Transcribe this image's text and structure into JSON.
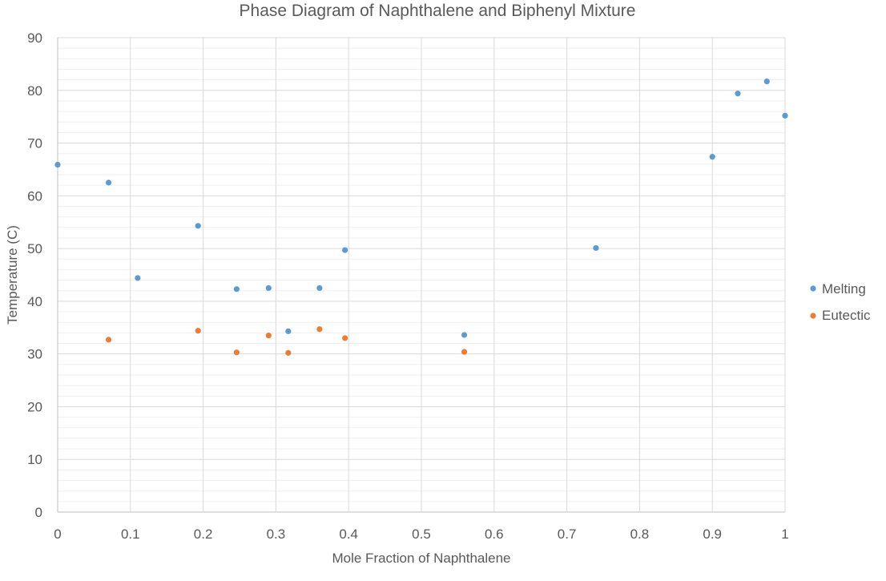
{
  "chart_data": {
    "type": "scatter",
    "title": "Phase Diagram of Naphthalene and Biphenyl Mixture",
    "xlabel": "Mole Fraction of Naphthalene",
    "ylabel": "Temperature (C)",
    "xlim": [
      0,
      1
    ],
    "ylim": [
      0,
      90
    ],
    "x_ticks": [
      "0",
      "0.1",
      "0.2",
      "0.3",
      "0.4",
      "0.5",
      "0.6",
      "0.7",
      "0.8",
      "0.9",
      "1"
    ],
    "y_ticks": [
      "0",
      "10",
      "20",
      "30",
      "40",
      "50",
      "60",
      "70",
      "80",
      "90"
    ],
    "x_tick_values": [
      0,
      0.1,
      0.2,
      0.3,
      0.4,
      0.5,
      0.6,
      0.7,
      0.8,
      0.9,
      1
    ],
    "y_tick_values": [
      0,
      10,
      20,
      30,
      40,
      50,
      60,
      70,
      80,
      90
    ],
    "grid": "major and minor",
    "legend_position": "right",
    "series": [
      {
        "name": "Melting",
        "color": "#5b9bd5",
        "points": [
          [
            0,
            65.9
          ],
          [
            0.07,
            62.5
          ],
          [
            0.11,
            44.4
          ],
          [
            0.193,
            54.3
          ],
          [
            0.246,
            42.3
          ],
          [
            0.29,
            42.5
          ],
          [
            0.317,
            34.3
          ],
          [
            0.36,
            42.5
          ],
          [
            0.395,
            49.7
          ],
          [
            0.559,
            33.6
          ],
          [
            0.74,
            50.1
          ],
          [
            0.9,
            67.4
          ],
          [
            0.935,
            79.4
          ],
          [
            0.975,
            81.7
          ],
          [
            1.0,
            75.2
          ]
        ]
      },
      {
        "name": "Eutectic",
        "color": "#ed7d31",
        "points": [
          [
            0.07,
            32.7
          ],
          [
            0.193,
            34.4
          ],
          [
            0.246,
            30.3
          ],
          [
            0.29,
            33.5
          ],
          [
            0.317,
            30.2
          ],
          [
            0.36,
            34.7
          ],
          [
            0.395,
            33.0
          ],
          [
            0.559,
            30.4
          ]
        ]
      }
    ]
  }
}
